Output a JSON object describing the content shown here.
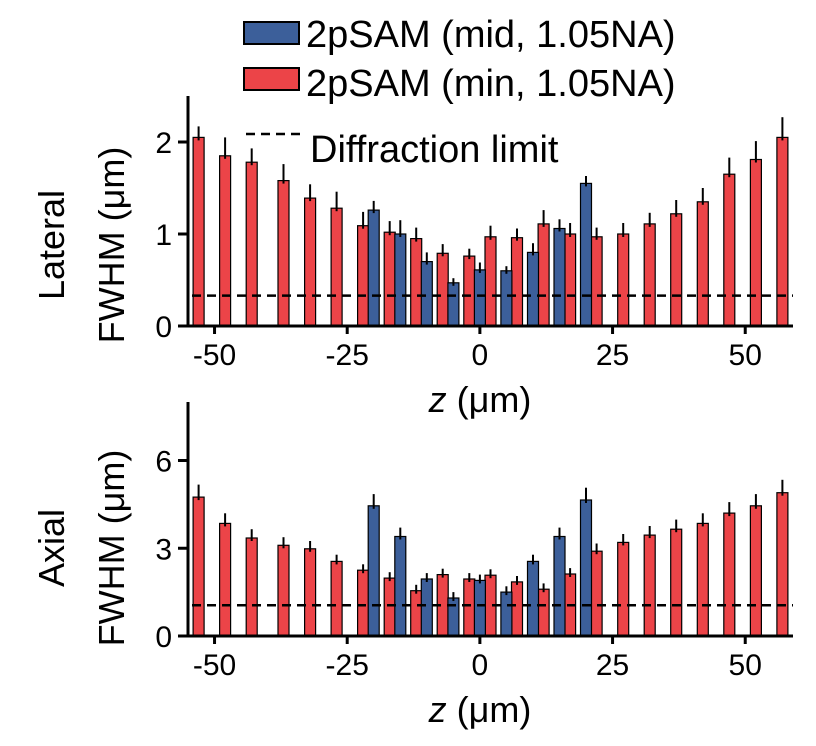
{
  "legend": {
    "mid_label": "2pSAM (mid, 1.05NA)",
    "min_label": "2pSAM (min, 1.05NA)",
    "limit_label": "Diffraction limit"
  },
  "colors": {
    "mid": "#3c5f9a",
    "min": "#ec4448",
    "axis": "#000000"
  },
  "chart_data": [
    {
      "type": "bar",
      "title": "",
      "ylabel_line1": "Lateral",
      "ylabel_line2": "FWHM (μm)",
      "xlabel_var": "z",
      "xlabel_unit": " (μm)",
      "xlim": [
        -55,
        59
      ],
      "ylim": [
        0,
        2.5
      ],
      "xticks": [
        -50,
        -25,
        0,
        25,
        50
      ],
      "yticks": [
        0,
        1,
        2
      ],
      "diffraction_limit": 0.33,
      "series": [
        {
          "name": "2pSAM (min, 1.05NA)",
          "key": "min",
          "x": [
            -53,
            -48,
            -43,
            -37,
            -32,
            -27,
            -22,
            -17,
            -12,
            -7,
            -2,
            2,
            7,
            12,
            17,
            22,
            27,
            32,
            37,
            42,
            47,
            52,
            57
          ],
          "values": [
            2.05,
            1.85,
            1.78,
            1.58,
            1.39,
            1.28,
            1.09,
            1.02,
            0.95,
            0.79,
            0.76,
            0.97,
            0.96,
            1.11,
            1.0,
            0.97,
            1.0,
            1.11,
            1.22,
            1.35,
            1.65,
            1.81,
            2.05
          ],
          "errors": [
            0.12,
            0.2,
            0.15,
            0.18,
            0.15,
            0.18,
            0.15,
            0.12,
            0.12,
            0.1,
            0.08,
            0.12,
            0.1,
            0.15,
            0.12,
            0.1,
            0.12,
            0.12,
            0.15,
            0.15,
            0.18,
            0.2,
            0.22
          ]
        },
        {
          "name": "2pSAM (mid, 1.05NA)",
          "key": "mid",
          "x": [
            -20,
            -15,
            -10,
            -5,
            0,
            5,
            10,
            15,
            20
          ],
          "values": [
            1.26,
            1.0,
            0.7,
            0.47,
            0.61,
            0.6,
            0.8,
            1.06,
            1.55
          ],
          "errors": [
            0.1,
            0.15,
            0.1,
            0.05,
            0.08,
            0.05,
            0.1,
            0.1,
            0.08
          ]
        }
      ]
    },
    {
      "type": "bar",
      "title": "",
      "ylabel_line1": "Axial",
      "ylabel_line2": "FWHM (μm)",
      "xlabel_var": "z",
      "xlabel_unit": " (μm)",
      "xlim": [
        -55,
        59
      ],
      "ylim": [
        0,
        8
      ],
      "xticks": [
        -50,
        -25,
        0,
        25,
        50
      ],
      "yticks": [
        0,
        3,
        6
      ],
      "diffraction_limit": 1.05,
      "series": [
        {
          "name": "2pSAM (min, 1.05NA)",
          "key": "min",
          "x": [
            -53,
            -48,
            -43,
            -37,
            -32,
            -27,
            -22,
            -17,
            -12,
            -7,
            -2,
            2,
            7,
            12,
            17,
            22,
            27,
            32,
            37,
            42,
            47,
            52,
            57
          ],
          "values": [
            4.75,
            3.85,
            3.35,
            3.1,
            2.98,
            2.55,
            2.25,
            1.98,
            1.55,
            2.1,
            1.95,
            2.08,
            1.85,
            1.6,
            2.12,
            2.9,
            3.2,
            3.45,
            3.65,
            3.85,
            4.2,
            4.45,
            4.9
          ]
        },
        {
          "name": "2pSAM (mid, 1.05NA)",
          "key": "mid",
          "x": [
            -20,
            -15,
            -10,
            -5,
            0,
            5,
            10,
            15,
            20
          ],
          "values": [
            4.45,
            3.4,
            1.95,
            1.3,
            1.9,
            1.5,
            2.55,
            3.4,
            4.65
          ]
        }
      ]
    }
  ]
}
